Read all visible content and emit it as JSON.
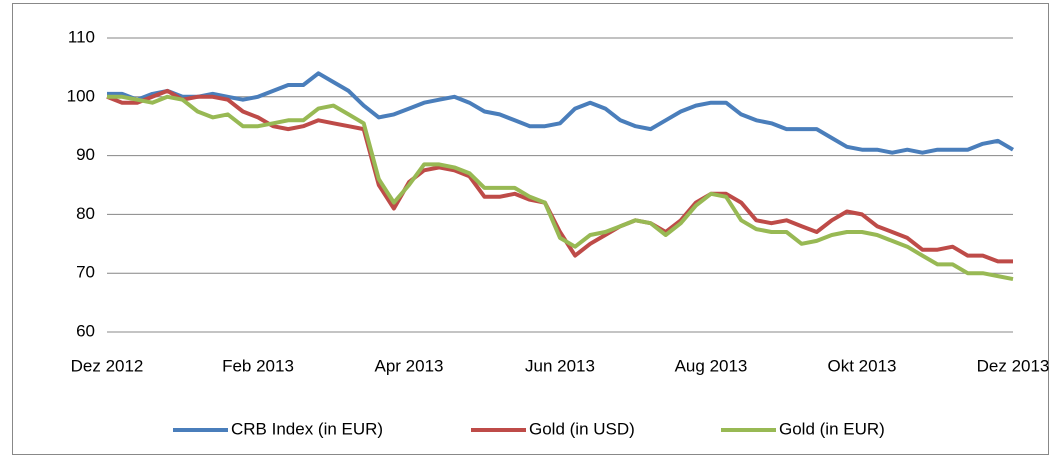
{
  "chart_data": {
    "type": "line",
    "categories": [
      "Dez 2012",
      null,
      null,
      null,
      null,
      null,
      null,
      null,
      null,
      null,
      "Feb 2013",
      null,
      null,
      null,
      null,
      null,
      null,
      null,
      null,
      null,
      "Apr 2013",
      null,
      null,
      null,
      null,
      null,
      null,
      null,
      null,
      null,
      "Jun 2013",
      null,
      null,
      null,
      null,
      null,
      null,
      null,
      null,
      null,
      "Aug 2013",
      null,
      null,
      null,
      null,
      null,
      null,
      null,
      null,
      null,
      "Okt 2013",
      null,
      null,
      null,
      null,
      null,
      null,
      null,
      null,
      null,
      "Dez 2013"
    ],
    "series": [
      {
        "name": "CRB Index (in EUR)",
        "color": "#4a7ebb",
        "values": [
          100.5,
          100.5,
          99.5,
          100.5,
          101,
          100,
          100,
          100.5,
          100,
          99.5,
          100,
          101,
          102,
          102,
          104,
          102.5,
          101,
          98.5,
          96.5,
          97,
          98,
          99,
          99.5,
          100,
          99,
          97.5,
          97,
          96,
          95,
          95,
          95.5,
          98,
          99,
          98,
          96,
          95,
          94.5,
          96,
          97.5,
          98.5,
          99,
          99,
          97,
          96,
          95.5,
          94.5,
          94.5,
          94.5,
          93,
          91.5,
          91,
          91,
          90.5,
          91,
          90.5,
          91,
          91,
          91,
          92,
          92.5,
          91
        ]
      },
      {
        "name": "Gold (in USD)",
        "color": "#be4b48",
        "values": [
          100,
          99,
          99,
          100,
          101,
          99.5,
          100,
          100,
          99.5,
          97.5,
          96.5,
          95,
          94.5,
          95,
          96,
          95.5,
          95,
          94.5,
          85,
          81,
          85.5,
          87.5,
          88,
          87.5,
          86.5,
          83,
          83,
          83.5,
          82.5,
          82,
          77,
          73,
          75,
          76.5,
          78,
          79,
          78.5,
          77,
          79,
          82,
          83.5,
          83.5,
          82,
          79,
          78.5,
          79,
          78,
          77,
          79,
          80.5,
          80,
          78,
          77,
          76,
          74,
          74,
          74.5,
          73,
          73,
          72,
          72
        ]
      },
      {
        "name": "Gold (in EUR)",
        "color": "#98b954",
        "values": [
          100,
          100,
          99.5,
          99,
          100,
          99.5,
          97.5,
          96.5,
          97,
          95,
          95,
          95.5,
          96,
          96,
          98,
          98.5,
          97,
          95.5,
          86,
          82,
          85,
          88.5,
          88.5,
          88,
          87,
          84.5,
          84.5,
          84.5,
          83,
          82,
          76,
          74.5,
          76.5,
          77,
          78,
          79,
          78.5,
          76.5,
          78.5,
          81.5,
          83.5,
          83,
          79,
          77.5,
          77,
          77,
          75,
          75.5,
          76.5,
          77,
          77,
          76.5,
          75.5,
          74.5,
          73,
          71.5,
          71.5,
          70,
          70,
          69.5,
          69
        ]
      }
    ],
    "ylim": [
      60,
      110
    ],
    "yticks": [
      60,
      70,
      80,
      90,
      100,
      110
    ],
    "grid": true,
    "legend": "bottom"
  }
}
